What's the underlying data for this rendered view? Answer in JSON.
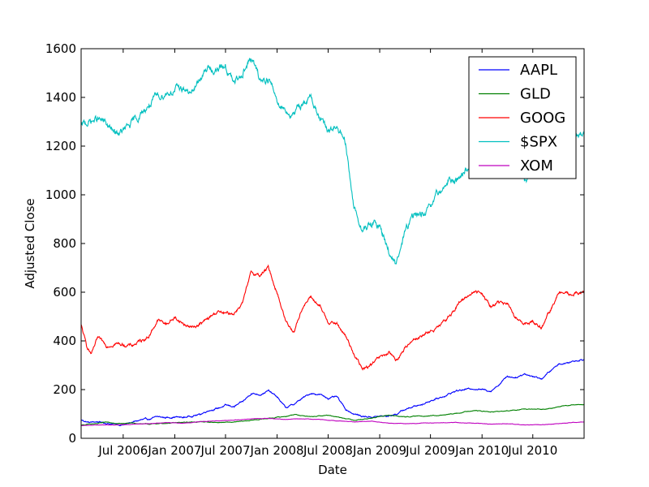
{
  "chart_data": {
    "type": "line",
    "title": "",
    "xlabel": "Date",
    "ylabel": "Adjusted Close",
    "xlim": [
      "2006-02-01",
      "2010-12-31"
    ],
    "ylim": [
      0,
      1600
    ],
    "yticks": [
      0,
      200,
      400,
      600,
      800,
      1000,
      1200,
      1400,
      1600
    ],
    "xticks": [
      {
        "date": "2006-07-01",
        "label": "Jul 2006"
      },
      {
        "date": "2007-01-01",
        "label": "Jan 2007"
      },
      {
        "date": "2007-07-01",
        "label": "Jul 2007"
      },
      {
        "date": "2008-01-01",
        "label": "Jan 2008"
      },
      {
        "date": "2008-07-01",
        "label": "Jul 2008"
      },
      {
        "date": "2009-01-01",
        "label": "Jan 2009"
      },
      {
        "date": "2009-07-01",
        "label": "Jul 2009"
      },
      {
        "date": "2010-01-01",
        "label": "Jan 2010"
      },
      {
        "date": "2010-07-01",
        "label": "Jul 2010"
      }
    ],
    "grid": false,
    "legend_position": "top-right",
    "series": [
      {
        "name": "AAPL",
        "color": "#0000ff",
        "points": [
          [
            "2006-02-01",
            75
          ],
          [
            "2006-03-01",
            65
          ],
          [
            "2006-04-01",
            68
          ],
          [
            "2006-05-01",
            62
          ],
          [
            "2006-06-01",
            58
          ],
          [
            "2006-07-01",
            55
          ],
          [
            "2006-08-01",
            65
          ],
          [
            "2006-09-01",
            75
          ],
          [
            "2006-10-01",
            78
          ],
          [
            "2006-11-01",
            88
          ],
          [
            "2006-12-01",
            85
          ],
          [
            "2007-01-01",
            88
          ],
          [
            "2007-02-01",
            85
          ],
          [
            "2007-03-01",
            92
          ],
          [
            "2007-04-01",
            98
          ],
          [
            "2007-05-01",
            115
          ],
          [
            "2007-06-01",
            122
          ],
          [
            "2007-07-01",
            135
          ],
          [
            "2007-08-01",
            130
          ],
          [
            "2007-09-01",
            150
          ],
          [
            "2007-10-01",
            185
          ],
          [
            "2007-11-01",
            180
          ],
          [
            "2007-12-01",
            195
          ],
          [
            "2008-01-01",
            170
          ],
          [
            "2008-02-01",
            125
          ],
          [
            "2008-03-01",
            140
          ],
          [
            "2008-04-01",
            165
          ],
          [
            "2008-05-01",
            185
          ],
          [
            "2008-06-01",
            180
          ],
          [
            "2008-07-01",
            165
          ],
          [
            "2008-08-01",
            170
          ],
          [
            "2008-09-01",
            120
          ],
          [
            "2008-10-01",
            100
          ],
          [
            "2008-11-01",
            90
          ],
          [
            "2008-12-01",
            88
          ],
          [
            "2009-01-01",
            90
          ],
          [
            "2009-02-01",
            92
          ],
          [
            "2009-03-01",
            100
          ],
          [
            "2009-04-01",
            118
          ],
          [
            "2009-05-01",
            130
          ],
          [
            "2009-06-01",
            140
          ],
          [
            "2009-07-01",
            155
          ],
          [
            "2009-08-01",
            165
          ],
          [
            "2009-09-01",
            180
          ],
          [
            "2009-10-01",
            195
          ],
          [
            "2009-11-01",
            200
          ],
          [
            "2009-12-01",
            205
          ],
          [
            "2010-01-01",
            200
          ],
          [
            "2010-02-01",
            195
          ],
          [
            "2010-03-01",
            220
          ],
          [
            "2010-04-01",
            255
          ],
          [
            "2010-05-01",
            250
          ],
          [
            "2010-06-01",
            265
          ],
          [
            "2010-07-01",
            255
          ],
          [
            "2010-08-01",
            245
          ],
          [
            "2010-09-01",
            275
          ],
          [
            "2010-10-01",
            305
          ],
          [
            "2010-11-01",
            310
          ],
          [
            "2010-12-01",
            320
          ],
          [
            "2010-12-31",
            325
          ]
        ]
      },
      {
        "name": "GLD",
        "color": "#008000",
        "points": [
          [
            "2006-02-01",
            55
          ],
          [
            "2006-04-01",
            60
          ],
          [
            "2006-05-01",
            68
          ],
          [
            "2006-06-01",
            60
          ],
          [
            "2006-08-01",
            62
          ],
          [
            "2006-10-01",
            58
          ],
          [
            "2006-12-01",
            62
          ],
          [
            "2007-02-01",
            65
          ],
          [
            "2007-04-01",
            68
          ],
          [
            "2007-06-01",
            65
          ],
          [
            "2007-08-01",
            66
          ],
          [
            "2007-10-01",
            74
          ],
          [
            "2007-12-01",
            82
          ],
          [
            "2008-02-01",
            90
          ],
          [
            "2008-03-01",
            98
          ],
          [
            "2008-05-01",
            88
          ],
          [
            "2008-07-01",
            95
          ],
          [
            "2008-09-01",
            82
          ],
          [
            "2008-10-01",
            75
          ],
          [
            "2008-12-01",
            82
          ],
          [
            "2009-02-01",
            95
          ],
          [
            "2009-04-01",
            88
          ],
          [
            "2009-06-01",
            92
          ],
          [
            "2009-08-01",
            93
          ],
          [
            "2009-10-01",
            102
          ],
          [
            "2009-12-01",
            115
          ],
          [
            "2010-02-01",
            108
          ],
          [
            "2010-04-01",
            112
          ],
          [
            "2010-06-01",
            120
          ],
          [
            "2010-08-01",
            118
          ],
          [
            "2010-10-01",
            130
          ],
          [
            "2010-12-01",
            138
          ],
          [
            "2010-12-31",
            138
          ]
        ]
      },
      {
        "name": "GOOG",
        "color": "#ff0000",
        "points": [
          [
            "2006-02-01",
            465
          ],
          [
            "2006-02-20",
            380
          ],
          [
            "2006-03-10",
            345
          ],
          [
            "2006-04-01",
            410
          ],
          [
            "2006-05-01",
            380
          ],
          [
            "2006-06-01",
            390
          ],
          [
            "2006-07-01",
            385
          ],
          [
            "2006-08-01",
            380
          ],
          [
            "2006-09-01",
            400
          ],
          [
            "2006-10-01",
            420
          ],
          [
            "2006-11-01",
            485
          ],
          [
            "2006-12-01",
            470
          ],
          [
            "2007-01-01",
            495
          ],
          [
            "2007-02-01",
            470
          ],
          [
            "2007-03-01",
            455
          ],
          [
            "2007-04-01",
            470
          ],
          [
            "2007-05-01",
            490
          ],
          [
            "2007-06-01",
            520
          ],
          [
            "2007-07-01",
            510
          ],
          [
            "2007-08-01",
            515
          ],
          [
            "2007-09-01",
            560
          ],
          [
            "2007-10-01",
            680
          ],
          [
            "2007-11-01",
            670
          ],
          [
            "2007-12-01",
            700
          ],
          [
            "2008-01-01",
            600
          ],
          [
            "2008-02-01",
            480
          ],
          [
            "2008-03-01",
            440
          ],
          [
            "2008-04-01",
            540
          ],
          [
            "2008-05-01",
            580
          ],
          [
            "2008-06-01",
            540
          ],
          [
            "2008-07-01",
            480
          ],
          [
            "2008-08-01",
            470
          ],
          [
            "2008-09-01",
            420
          ],
          [
            "2008-10-01",
            350
          ],
          [
            "2008-11-01",
            280
          ],
          [
            "2008-12-01",
            300
          ],
          [
            "2009-01-01",
            330
          ],
          [
            "2009-02-01",
            350
          ],
          [
            "2009-03-01",
            320
          ],
          [
            "2009-04-01",
            370
          ],
          [
            "2009-05-01",
            410
          ],
          [
            "2009-06-01",
            420
          ],
          [
            "2009-07-01",
            440
          ],
          [
            "2009-08-01",
            455
          ],
          [
            "2009-09-01",
            495
          ],
          [
            "2009-10-01",
            540
          ],
          [
            "2009-11-01",
            580
          ],
          [
            "2009-12-01",
            600
          ],
          [
            "2010-01-01",
            600
          ],
          [
            "2010-02-01",
            540
          ],
          [
            "2010-03-01",
            560
          ],
          [
            "2010-04-01",
            550
          ],
          [
            "2010-05-01",
            490
          ],
          [
            "2010-06-01",
            470
          ],
          [
            "2010-07-01",
            480
          ],
          [
            "2010-08-01",
            455
          ],
          [
            "2010-09-01",
            520
          ],
          [
            "2010-10-01",
            600
          ],
          [
            "2010-11-01",
            590
          ],
          [
            "2010-12-01",
            595
          ],
          [
            "2010-12-31",
            598
          ]
        ]
      },
      {
        "name": "$SPX",
        "color": "#00bfbf",
        "points": [
          [
            "2006-02-01",
            1280
          ],
          [
            "2006-03-01",
            1300
          ],
          [
            "2006-04-01",
            1310
          ],
          [
            "2006-05-01",
            1290
          ],
          [
            "2006-06-01",
            1250
          ],
          [
            "2006-07-01",
            1260
          ],
          [
            "2006-08-01",
            1290
          ],
          [
            "2006-09-01",
            1330
          ],
          [
            "2006-10-01",
            1370
          ],
          [
            "2006-11-01",
            1400
          ],
          [
            "2006-12-01",
            1420
          ],
          [
            "2007-01-01",
            1430
          ],
          [
            "2007-02-01",
            1440
          ],
          [
            "2007-03-01",
            1410
          ],
          [
            "2007-04-01",
            1480
          ],
          [
            "2007-05-01",
            1520
          ],
          [
            "2007-06-01",
            1510
          ],
          [
            "2007-07-01",
            1530
          ],
          [
            "2007-08-01",
            1450
          ],
          [
            "2007-09-01",
            1510
          ],
          [
            "2007-10-01",
            1560
          ],
          [
            "2007-11-01",
            1470
          ],
          [
            "2007-12-01",
            1480
          ],
          [
            "2008-01-01",
            1390
          ],
          [
            "2008-02-01",
            1350
          ],
          [
            "2008-03-01",
            1320
          ],
          [
            "2008-04-01",
            1380
          ],
          [
            "2008-05-01",
            1400
          ],
          [
            "2008-06-01",
            1320
          ],
          [
            "2008-07-01",
            1250
          ],
          [
            "2008-08-01",
            1280
          ],
          [
            "2008-09-01",
            1200
          ],
          [
            "2008-10-01",
            950
          ],
          [
            "2008-11-01",
            850
          ],
          [
            "2008-12-01",
            880
          ],
          [
            "2009-01-01",
            870
          ],
          [
            "2009-02-01",
            780
          ],
          [
            "2009-03-01",
            700
          ],
          [
            "2009-04-01",
            850
          ],
          [
            "2009-05-01",
            910
          ],
          [
            "2009-06-01",
            920
          ],
          [
            "2009-07-01",
            940
          ],
          [
            "2009-08-01",
            1010
          ],
          [
            "2009-09-01",
            1050
          ],
          [
            "2009-10-01",
            1060
          ],
          [
            "2009-11-01",
            1100
          ],
          [
            "2009-12-01",
            1110
          ],
          [
            "2010-01-01",
            1130
          ],
          [
            "2010-02-01",
            1100
          ],
          [
            "2010-03-01",
            1160
          ],
          [
            "2010-04-01",
            1200
          ],
          [
            "2010-05-01",
            1100
          ],
          [
            "2010-06-01",
            1060
          ],
          [
            "2010-07-01",
            1080
          ],
          [
            "2010-08-01",
            1090
          ],
          [
            "2010-09-01",
            1120
          ],
          [
            "2010-10-01",
            1180
          ],
          [
            "2010-11-01",
            1200
          ],
          [
            "2010-12-01",
            1240
          ],
          [
            "2010-12-31",
            1258
          ]
        ]
      },
      {
        "name": "XOM",
        "color": "#bf00bf",
        "points": [
          [
            "2006-02-01",
            52
          ],
          [
            "2006-04-01",
            55
          ],
          [
            "2006-06-01",
            54
          ],
          [
            "2006-08-01",
            58
          ],
          [
            "2006-10-01",
            60
          ],
          [
            "2006-12-01",
            65
          ],
          [
            "2007-02-01",
            62
          ],
          [
            "2007-04-01",
            68
          ],
          [
            "2007-06-01",
            72
          ],
          [
            "2007-08-01",
            75
          ],
          [
            "2007-10-01",
            80
          ],
          [
            "2007-12-01",
            82
          ],
          [
            "2008-02-01",
            78
          ],
          [
            "2008-04-01",
            80
          ],
          [
            "2008-06-01",
            78
          ],
          [
            "2008-08-01",
            72
          ],
          [
            "2008-10-01",
            68
          ],
          [
            "2008-12-01",
            70
          ],
          [
            "2009-02-01",
            62
          ],
          [
            "2009-04-01",
            60
          ],
          [
            "2009-06-01",
            62
          ],
          [
            "2009-08-01",
            64
          ],
          [
            "2009-10-01",
            65
          ],
          [
            "2009-12-01",
            62
          ],
          [
            "2010-02-01",
            58
          ],
          [
            "2010-04-01",
            60
          ],
          [
            "2010-06-01",
            55
          ],
          [
            "2010-08-01",
            56
          ],
          [
            "2010-10-01",
            60
          ],
          [
            "2010-12-01",
            66
          ],
          [
            "2010-12-31",
            68
          ]
        ]
      }
    ]
  }
}
